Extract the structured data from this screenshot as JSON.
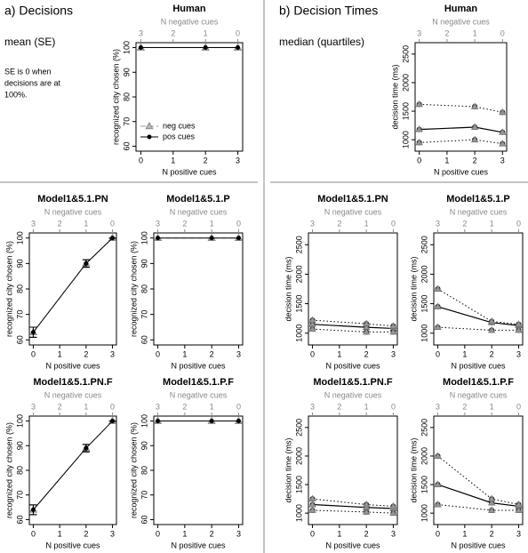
{
  "header": {
    "left": {
      "title": "a) Decisions",
      "subtitle": "mean (SE)",
      "note": [
        "SE is 0 when",
        "decisions are at",
        "100%."
      ]
    },
    "right": {
      "title": "b) Decision Times",
      "subtitle": "median (quartiles)"
    }
  },
  "chart_data": [
    {
      "type": "line",
      "title": "Human",
      "x": [
        0,
        2,
        3
      ],
      "xlim": [
        -0.15,
        3.15
      ],
      "xticks": [
        0,
        1,
        2,
        3
      ],
      "xlabel": "N positive cues",
      "x2label": "N negative cues",
      "x2ticks": [
        {
          "value": 0,
          "label": "3"
        },
        {
          "value": 1,
          "label": "2"
        },
        {
          "value": 2,
          "label": "1"
        },
        {
          "value": 3,
          "label": "0"
        }
      ],
      "ylabel": "recognized city chosen (%)",
      "ylim": [
        58,
        102
      ],
      "yticks": [
        60,
        70,
        80,
        90,
        100
      ],
      "legend": "lower left",
      "series": [
        {
          "name": "neg cues",
          "color": "#999999",
          "marker": "triangle",
          "dash": true,
          "values": [
            100,
            100,
            100
          ]
        },
        {
          "name": "pos cues",
          "color": "#000000",
          "marker": "circle",
          "values": [
            100,
            100,
            100
          ]
        }
      ]
    },
    {
      "type": "line",
      "title": "Model1&5.1.PN",
      "x": [
        0,
        2,
        3
      ],
      "xlim": [
        -0.15,
        3.15
      ],
      "xticks": [
        0,
        1,
        2,
        3
      ],
      "xlabel": "N positive cues",
      "x2label": "N negative cues",
      "x2ticks": [
        {
          "value": 0,
          "label": "3"
        },
        {
          "value": 1,
          "label": "2"
        },
        {
          "value": 2,
          "label": "1"
        },
        {
          "value": 3,
          "label": "0"
        }
      ],
      "ylabel": "recognized city chosen (%)",
      "ylim": [
        58,
        102
      ],
      "yticks": [
        60,
        70,
        80,
        90,
        100
      ],
      "series": [
        {
          "color": "#999999",
          "marker": "triangle",
          "dash": true,
          "values": [
            63,
            90,
            100
          ],
          "errors": [
            2,
            1.5,
            0
          ]
        },
        {
          "color": "#000000",
          "marker": "circle",
          "values": [
            63,
            90,
            100
          ],
          "errors": [
            2,
            1.5,
            0
          ]
        }
      ]
    },
    {
      "type": "line",
      "title": "Model1&5.1.P",
      "x": [
        0,
        2,
        3
      ],
      "xlim": [
        -0.15,
        3.15
      ],
      "xticks": [
        0,
        1,
        2,
        3
      ],
      "xlabel": "N positive cues",
      "x2label": "N negative cues",
      "x2ticks": [
        {
          "value": 0,
          "label": "3"
        },
        {
          "value": 1,
          "label": "2"
        },
        {
          "value": 2,
          "label": "1"
        },
        {
          "value": 3,
          "label": "0"
        }
      ],
      "ylabel": "recognized city chosen (%)",
      "ylim": [
        58,
        102
      ],
      "yticks": [
        60,
        70,
        80,
        90,
        100
      ],
      "series": [
        {
          "color": "#999999",
          "marker": "triangle",
          "dash": true,
          "values": [
            100,
            100,
            100
          ]
        },
        {
          "color": "#000000",
          "marker": "circle",
          "values": [
            100,
            100,
            100
          ]
        }
      ]
    },
    {
      "type": "line",
      "title": "Model1&5.1.PN.F",
      "x": [
        0,
        2,
        3
      ],
      "xlim": [
        -0.15,
        3.15
      ],
      "xticks": [
        0,
        1,
        2,
        3
      ],
      "xlabel": "N positive cues",
      "x2label": "N negative cues",
      "x2ticks": [
        {
          "value": 0,
          "label": "3"
        },
        {
          "value": 1,
          "label": "2"
        },
        {
          "value": 2,
          "label": "1"
        },
        {
          "value": 3,
          "label": "0"
        }
      ],
      "ylabel": "recognized city chosen (%)",
      "ylim": [
        58,
        102
      ],
      "yticks": [
        60,
        70,
        80,
        90,
        100
      ],
      "series": [
        {
          "color": "#999999",
          "marker": "triangle",
          "dash": true,
          "values": [
            64,
            89,
            100
          ],
          "errors": [
            2,
            1.5,
            0
          ]
        },
        {
          "color": "#000000",
          "marker": "circle",
          "values": [
            64,
            89,
            100
          ],
          "errors": [
            2,
            1.5,
            0
          ]
        }
      ]
    },
    {
      "type": "line",
      "title": "Model1&5.1.P.F",
      "x": [
        0,
        2,
        3
      ],
      "xlim": [
        -0.15,
        3.15
      ],
      "xticks": [
        0,
        1,
        2,
        3
      ],
      "xlabel": "N positive cues",
      "x2label": "N negative cues",
      "x2ticks": [
        {
          "value": 0,
          "label": "3"
        },
        {
          "value": 1,
          "label": "2"
        },
        {
          "value": 2,
          "label": "1"
        },
        {
          "value": 3,
          "label": "0"
        }
      ],
      "ylabel": "recognized city chosen (%)",
      "ylim": [
        58,
        102
      ],
      "yticks": [
        60,
        70,
        80,
        90,
        100
      ],
      "series": [
        {
          "color": "#999999",
          "marker": "triangle",
          "dash": true,
          "values": [
            100,
            100,
            100
          ]
        },
        {
          "color": "#000000",
          "marker": "circle",
          "values": [
            100,
            100,
            100
          ]
        }
      ]
    },
    {
      "type": "quartile",
      "title": "Human",
      "x": [
        0,
        2,
        3
      ],
      "xlim": [
        -0.15,
        3.15
      ],
      "xticks": [
        0,
        1,
        2,
        3
      ],
      "xlabel": "N positive cues",
      "x2label": "N negative cues",
      "x2ticks": [
        {
          "value": 0,
          "label": "3"
        },
        {
          "value": 1,
          "label": "2"
        },
        {
          "value": 2,
          "label": "1"
        },
        {
          "value": 3,
          "label": "0"
        }
      ],
      "ylabel": "decision time (ms)",
      "ylim": [
        800,
        2700
      ],
      "yticks": [
        1000,
        1500,
        2000,
        2500
      ],
      "series": [
        {
          "color": "#000000",
          "style": "solid",
          "values": [
            1180,
            1220,
            1130
          ]
        },
        {
          "color": "#000000",
          "style": "dotted",
          "values": [
            950,
            1000,
            930
          ]
        },
        {
          "color": "#000000",
          "style": "dotted",
          "values": [
            1620,
            1580,
            1480
          ]
        }
      ]
    },
    {
      "type": "quartile",
      "title": "Model1&5.1.PN",
      "x": [
        0,
        2,
        3
      ],
      "xlim": [
        -0.15,
        3.15
      ],
      "xticks": [
        0,
        1,
        2,
        3
      ],
      "xlabel": "N positive cues",
      "x2label": "N negative cues",
      "x2ticks": [
        {
          "value": 0,
          "label": "3"
        },
        {
          "value": 1,
          "label": "2"
        },
        {
          "value": 2,
          "label": "1"
        },
        {
          "value": 3,
          "label": "0"
        }
      ],
      "ylabel": "decision time (ms)",
      "ylim": [
        800,
        2700
      ],
      "yticks": [
        1000,
        1500,
        2000,
        2500
      ],
      "series": [
        {
          "color": "#000000",
          "style": "solid",
          "values": [
            1150,
            1100,
            1080
          ]
        },
        {
          "color": "#000000",
          "style": "dotted",
          "values": [
            1070,
            1020,
            1020
          ]
        },
        {
          "color": "#000000",
          "style": "dotted",
          "values": [
            1220,
            1160,
            1120
          ]
        }
      ]
    },
    {
      "type": "quartile",
      "title": "Model1&5.1.P",
      "x": [
        0,
        2,
        3
      ],
      "xlim": [
        -0.15,
        3.15
      ],
      "xticks": [
        0,
        1,
        2,
        3
      ],
      "xlabel": "N positive cues",
      "x2label": "N negative cues",
      "x2ticks": [
        {
          "value": 0,
          "label": "3"
        },
        {
          "value": 1,
          "label": "2"
        },
        {
          "value": 2,
          "label": "1"
        },
        {
          "value": 3,
          "label": "0"
        }
      ],
      "ylabel": "decision time (ms)",
      "ylim": [
        800,
        2700
      ],
      "yticks": [
        1000,
        1500,
        2000,
        2500
      ],
      "series": [
        {
          "color": "#000000",
          "style": "solid",
          "values": [
            1450,
            1180,
            1130
          ]
        },
        {
          "color": "#000000",
          "style": "dotted",
          "values": [
            1100,
            1050,
            1050
          ]
        },
        {
          "color": "#000000",
          "style": "dotted",
          "values": [
            1750,
            1200,
            1150
          ]
        }
      ]
    },
    {
      "type": "quartile",
      "title": "Model1&5.1.PN.F",
      "x": [
        0,
        2,
        3
      ],
      "xlim": [
        -0.15,
        3.15
      ],
      "xticks": [
        0,
        1,
        2,
        3
      ],
      "xlabel": "N positive cues",
      "x2label": "N negative cues",
      "x2ticks": [
        {
          "value": 0,
          "label": "3"
        },
        {
          "value": 1,
          "label": "2"
        },
        {
          "value": 2,
          "label": "1"
        },
        {
          "value": 3,
          "label": "0"
        }
      ],
      "ylabel": "decision time (ms)",
      "ylim": [
        800,
        2700
      ],
      "yticks": [
        1000,
        1500,
        2000,
        2500
      ],
      "series": [
        {
          "color": "#000000",
          "style": "solid",
          "values": [
            1150,
            1100,
            1080
          ]
        },
        {
          "color": "#000000",
          "style": "dotted",
          "values": [
            1050,
            1020,
            1000
          ]
        },
        {
          "color": "#000000",
          "style": "dotted",
          "values": [
            1250,
            1150,
            1120
          ]
        }
      ]
    },
    {
      "type": "quartile",
      "title": "Model1&5.1.P.F",
      "x": [
        0,
        2,
        3
      ],
      "xlim": [
        -0.15,
        3.15
      ],
      "xticks": [
        0,
        1,
        2,
        3
      ],
      "xlabel": "N positive cues",
      "x2label": "N negative cues",
      "x2ticks": [
        {
          "value": 0,
          "label": "3"
        },
        {
          "value": 1,
          "label": "2"
        },
        {
          "value": 2,
          "label": "1"
        },
        {
          "value": 3,
          "label": "0"
        }
      ],
      "ylabel": "decision time (ms)",
      "ylim": [
        800,
        2700
      ],
      "yticks": [
        1000,
        1500,
        2000,
        2500
      ],
      "series": [
        {
          "color": "#000000",
          "style": "solid",
          "values": [
            1500,
            1180,
            1120
          ]
        },
        {
          "color": "#000000",
          "style": "dotted",
          "values": [
            1150,
            1050,
            1050
          ]
        },
        {
          "color": "#000000",
          "style": "dotted",
          "values": [
            2000,
            1250,
            1150
          ]
        }
      ]
    }
  ]
}
